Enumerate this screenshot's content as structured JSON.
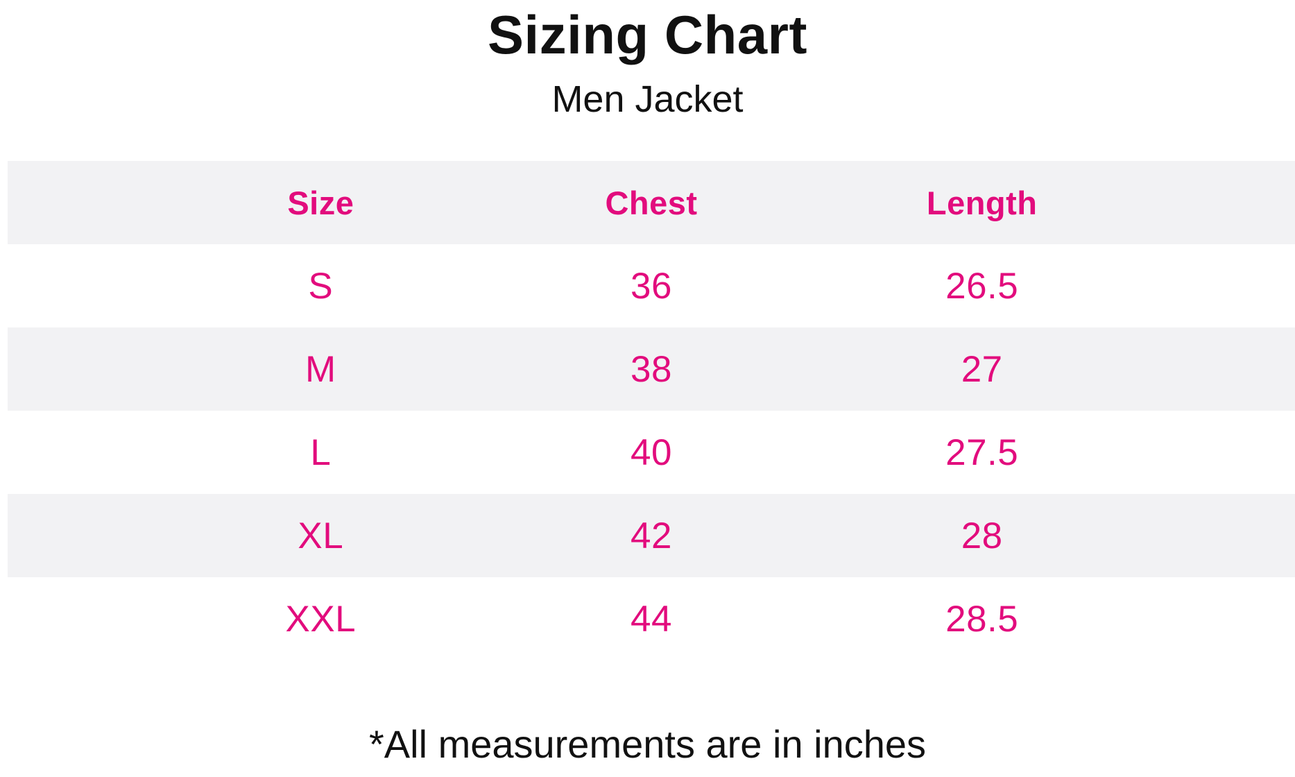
{
  "title": "Sizing Chart",
  "subtitle": "Men Jacket",
  "footnote": "*All measurements are in inches",
  "colors": {
    "accent_pink": "#E20C7D",
    "row_stripe_gray": "#F2F2F4",
    "text_black": "#111111"
  },
  "table": {
    "headers": [
      "Size",
      "Chest",
      "Length"
    ],
    "rows": [
      [
        "S",
        "36",
        "26.5"
      ],
      [
        "M",
        "38",
        "27"
      ],
      [
        "L",
        "40",
        "27.5"
      ],
      [
        "XL",
        "42",
        "28"
      ],
      [
        "XXL",
        "44",
        "28.5"
      ]
    ]
  },
  "chart_data": {
    "type": "table",
    "title": "Sizing Chart",
    "subtitle": "Men Jacket",
    "columns": [
      "Size",
      "Chest",
      "Length"
    ],
    "rows": [
      [
        "S",
        "36",
        "26.5"
      ],
      [
        "M",
        "38",
        "27"
      ],
      [
        "L",
        "40",
        "27.5"
      ],
      [
        "XL",
        "42",
        "28"
      ],
      [
        "XXL",
        "44",
        "28.5"
      ]
    ],
    "footnote": "*All measurements are in inches",
    "layout_hints": {
      "striped_rows": [
        "header",
        "M",
        "XL"
      ],
      "text_alignment": "center",
      "grid": "off"
    }
  }
}
